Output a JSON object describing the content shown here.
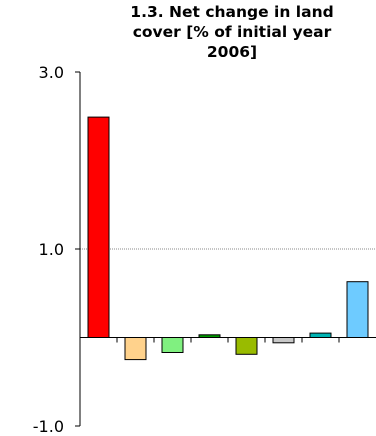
{
  "chart_data": {
    "type": "bar",
    "title_lines": [
      "1.3. Net change in land",
      "cover [% of initial year",
      "2006]"
    ],
    "xlabel": "",
    "ylabel": "",
    "ylim": [
      -1.0,
      3.0
    ],
    "yticks": [
      "3.0",
      "1.0",
      "-1.0"
    ],
    "gridlines_at": [
      1.0
    ],
    "categories": [
      "",
      "",
      "",
      "",
      "",
      "",
      "",
      ""
    ],
    "values": [
      2.49,
      -0.25,
      -0.17,
      0.03,
      -0.19,
      -0.06,
      0.05,
      0.63
    ],
    "colors": [
      "#ff0000",
      "#ffd28c",
      "#80f080",
      "#009900",
      "#99bb00",
      "#c8c8c8",
      "#00b3b3",
      "#6ecbff"
    ]
  }
}
